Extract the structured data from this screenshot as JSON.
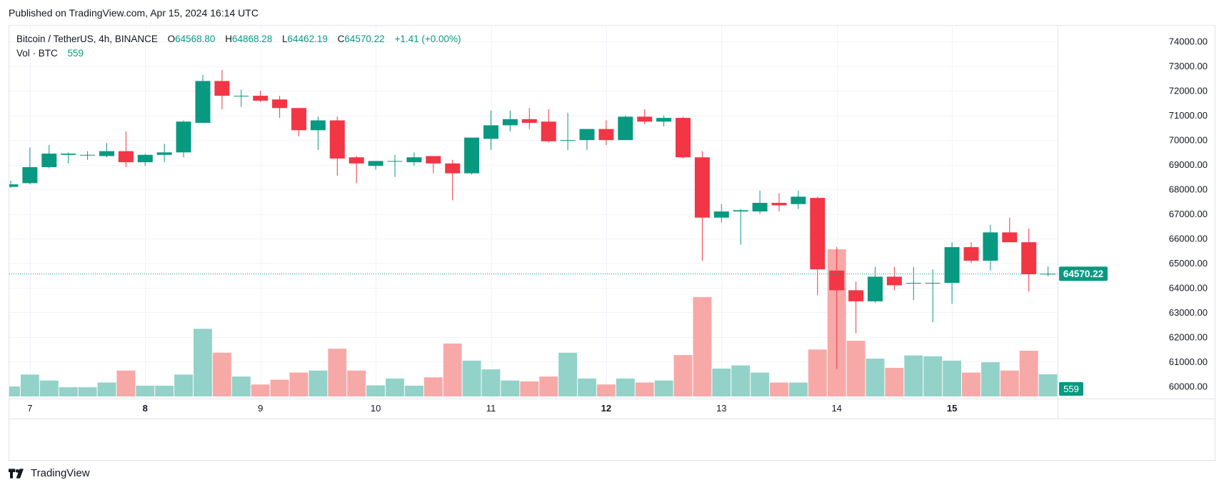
{
  "published": "Published on TradingView.com, Apr 15, 2024 16:14 UTC",
  "brand": "TradingView",
  "legend": {
    "symbol": "Bitcoin / TetherUS, 4h, BINANCE",
    "open_label": "O",
    "open": "64568.80",
    "high_label": "H",
    "high": "64868.28",
    "low_label": "L",
    "low": "64462.19",
    "close_label": "C",
    "close": "64570.22",
    "change": "+1.41 (+0.00%)",
    "vol_label": "Vol · BTC",
    "vol": "559"
  },
  "colors": {
    "up": "#089981",
    "down": "#f23645",
    "vol_up": "#92d2c9",
    "vol_down": "#f7a9a7",
    "grid": "#f0f3fa"
  },
  "chart_data": {
    "type": "candlestick",
    "interval": "4h",
    "y_axis_side": "right",
    "ylim": [
      59500,
      74500
    ],
    "yticks": [
      "74000.00",
      "73000.00",
      "72000.00",
      "71000.00",
      "70000.00",
      "69000.00",
      "68000.00",
      "67000.00",
      "66000.00",
      "65000.00",
      "64000.00",
      "63000.00",
      "62000.00",
      "61000.00",
      "60000.00"
    ],
    "ytick_values": [
      74000,
      73000,
      72000,
      71000,
      70000,
      69000,
      68000,
      67000,
      66000,
      65000,
      64000,
      63000,
      62000,
      61000,
      60000
    ],
    "xticks": [
      {
        "label": "7",
        "index": 1
      },
      {
        "label": "8",
        "index": 7
      },
      {
        "label": "9",
        "index": 13
      },
      {
        "label": "10",
        "index": 19
      },
      {
        "label": "11",
        "index": 25
      },
      {
        "label": "12",
        "index": 31
      },
      {
        "label": "13",
        "index": 37
      },
      {
        "label": "14",
        "index": 43
      },
      {
        "label": "15",
        "index": 49
      }
    ],
    "bold_xticks": [
      "8",
      "12",
      "15"
    ],
    "last_price": 64570.22,
    "last_price_label": "64570.22",
    "last_volume_label": "559",
    "volume_scale_max": 6000,
    "candles": [
      {
        "o": 68100,
        "h": 68350,
        "l": 68050,
        "c": 68200,
        "v": 250
      },
      {
        "o": 68250,
        "h": 69700,
        "l": 68200,
        "c": 68900,
        "v": 550
      },
      {
        "o": 68900,
        "h": 69800,
        "l": 68850,
        "c": 69450,
        "v": 400
      },
      {
        "o": 69400,
        "h": 69500,
        "l": 69050,
        "c": 69450,
        "v": 230
      },
      {
        "o": 69380,
        "h": 69550,
        "l": 69200,
        "c": 69400,
        "v": 230
      },
      {
        "o": 69350,
        "h": 69880,
        "l": 69300,
        "c": 69550,
        "v": 350
      },
      {
        "o": 69550,
        "h": 70350,
        "l": 68900,
        "c": 69100,
        "v": 650
      },
      {
        "o": 69100,
        "h": 69450,
        "l": 68950,
        "c": 69400,
        "v": 270
      },
      {
        "o": 69400,
        "h": 69850,
        "l": 69100,
        "c": 69500,
        "v": 270
      },
      {
        "o": 69500,
        "h": 70800,
        "l": 69300,
        "c": 70750,
        "v": 550
      },
      {
        "o": 70700,
        "h": 72650,
        "l": 70700,
        "c": 72400,
        "v": 1700
      },
      {
        "o": 72400,
        "h": 72850,
        "l": 71250,
        "c": 71800,
        "v": 1100
      },
      {
        "o": 71800,
        "h": 72050,
        "l": 71350,
        "c": 71800,
        "v": 500
      },
      {
        "o": 71800,
        "h": 72000,
        "l": 71550,
        "c": 71600,
        "v": 300
      },
      {
        "o": 71650,
        "h": 71800,
        "l": 70900,
        "c": 71300,
        "v": 420
      },
      {
        "o": 71300,
        "h": 71300,
        "l": 70150,
        "c": 70400,
        "v": 600
      },
      {
        "o": 70400,
        "h": 70950,
        "l": 69600,
        "c": 70800,
        "v": 650
      },
      {
        "o": 70800,
        "h": 70950,
        "l": 68550,
        "c": 69250,
        "v": 1200
      },
      {
        "o": 69300,
        "h": 69350,
        "l": 68250,
        "c": 69050,
        "v": 650
      },
      {
        "o": 68950,
        "h": 69150,
        "l": 68800,
        "c": 69150,
        "v": 280
      },
      {
        "o": 69150,
        "h": 69400,
        "l": 68500,
        "c": 69150,
        "v": 450
      },
      {
        "o": 69100,
        "h": 69500,
        "l": 68950,
        "c": 69300,
        "v": 270
      },
      {
        "o": 69350,
        "h": 69350,
        "l": 68650,
        "c": 69050,
        "v": 480
      },
      {
        "o": 69050,
        "h": 69200,
        "l": 67550,
        "c": 68650,
        "v": 1330
      },
      {
        "o": 68650,
        "h": 70100,
        "l": 68600,
        "c": 70100,
        "v": 900
      },
      {
        "o": 70050,
        "h": 71200,
        "l": 69600,
        "c": 70600,
        "v": 680
      },
      {
        "o": 70600,
        "h": 71200,
        "l": 70350,
        "c": 70850,
        "v": 400
      },
      {
        "o": 70850,
        "h": 71300,
        "l": 70450,
        "c": 70700,
        "v": 380
      },
      {
        "o": 70750,
        "h": 71250,
        "l": 69900,
        "c": 69950,
        "v": 500
      },
      {
        "o": 70000,
        "h": 71100,
        "l": 69600,
        "c": 70000,
        "v": 1100
      },
      {
        "o": 70000,
        "h": 70450,
        "l": 69600,
        "c": 70450,
        "v": 450
      },
      {
        "o": 70450,
        "h": 70800,
        "l": 69800,
        "c": 70000,
        "v": 300
      },
      {
        "o": 70000,
        "h": 71000,
        "l": 70000,
        "c": 70950,
        "v": 450
      },
      {
        "o": 70950,
        "h": 71250,
        "l": 70650,
        "c": 70750,
        "v": 350
      },
      {
        "o": 70750,
        "h": 71000,
        "l": 70550,
        "c": 70900,
        "v": 400
      },
      {
        "o": 70900,
        "h": 70950,
        "l": 69250,
        "c": 69300,
        "v": 1040
      },
      {
        "o": 69300,
        "h": 69550,
        "l": 65100,
        "c": 66850,
        "v": 2500
      },
      {
        "o": 66850,
        "h": 67400,
        "l": 66650,
        "c": 67100,
        "v": 700
      },
      {
        "o": 67100,
        "h": 67200,
        "l": 65750,
        "c": 67150,
        "v": 780
      },
      {
        "o": 67100,
        "h": 67950,
        "l": 67000,
        "c": 67450,
        "v": 600
      },
      {
        "o": 67450,
        "h": 67850,
        "l": 67100,
        "c": 67350,
        "v": 350
      },
      {
        "o": 67400,
        "h": 67950,
        "l": 67200,
        "c": 67700,
        "v": 350
      },
      {
        "o": 67650,
        "h": 67700,
        "l": 63700,
        "c": 64750,
        "v": 1180
      },
      {
        "o": 64700,
        "h": 65650,
        "l": 60700,
        "c": 63900,
        "v": 3700
      },
      {
        "o": 63900,
        "h": 64250,
        "l": 62150,
        "c": 63450,
        "v": 1400
      },
      {
        "o": 63450,
        "h": 64850,
        "l": 63400,
        "c": 64450,
        "v": 950
      },
      {
        "o": 64450,
        "h": 64850,
        "l": 63900,
        "c": 64100,
        "v": 720
      },
      {
        "o": 64200,
        "h": 64850,
        "l": 63500,
        "c": 64200,
        "v": 1030
      },
      {
        "o": 64200,
        "h": 64750,
        "l": 62600,
        "c": 64200,
        "v": 1010
      },
      {
        "o": 64200,
        "h": 65850,
        "l": 63350,
        "c": 65650,
        "v": 900
      },
      {
        "o": 65650,
        "h": 65850,
        "l": 65000,
        "c": 65100,
        "v": 600
      },
      {
        "o": 65100,
        "h": 66550,
        "l": 64700,
        "c": 66250,
        "v": 860
      },
      {
        "o": 66250,
        "h": 66850,
        "l": 65850,
        "c": 65850,
        "v": 650
      },
      {
        "o": 65850,
        "h": 66400,
        "l": 63850,
        "c": 64550,
        "v": 1150
      },
      {
        "o": 64569,
        "h": 64868,
        "l": 64462,
        "c": 64570,
        "v": 559
      }
    ]
  }
}
